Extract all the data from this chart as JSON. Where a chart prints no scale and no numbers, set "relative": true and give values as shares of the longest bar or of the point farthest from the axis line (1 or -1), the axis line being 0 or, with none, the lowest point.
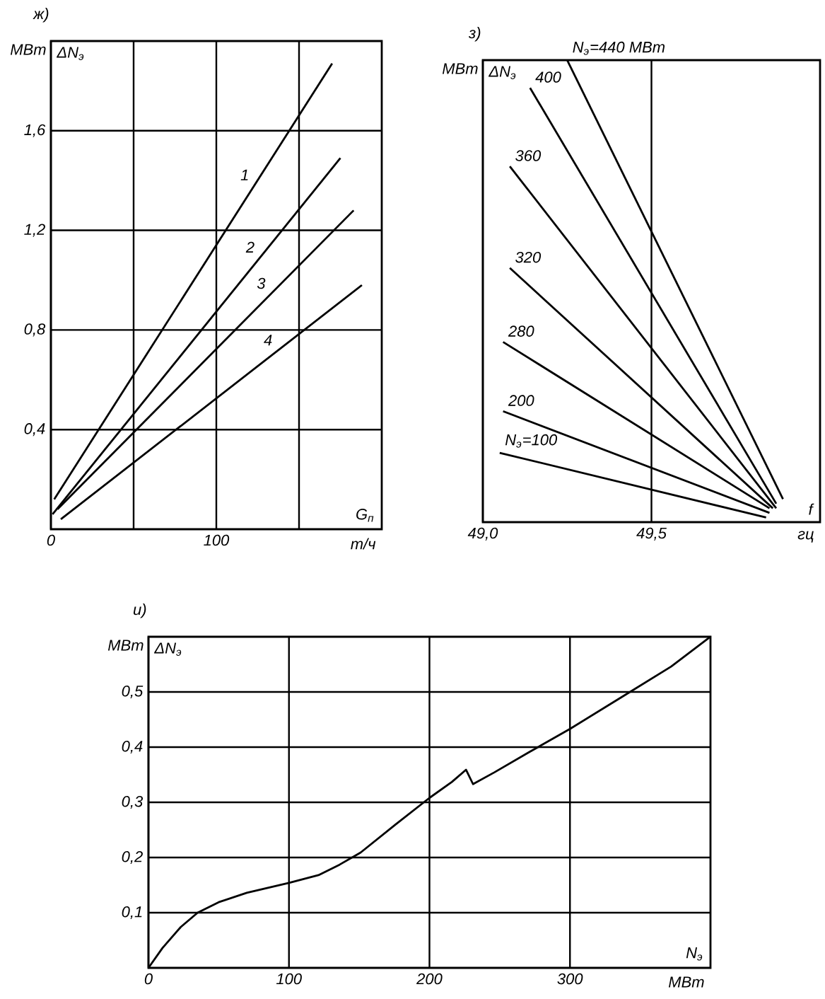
{
  "chart_data": [
    {
      "type": "line",
      "title": "ж)",
      "xlabel": "G$_{п}$",
      "ylabel": "ΔN$_{э}$",
      "annotations": [
        "МВт",
        "т/ч"
      ],
      "xlim": [
        0,
        200
      ],
      "ylim": [
        0,
        1.96
      ],
      "xticks": [
        0,
        {
          "value": 50,
          "label": null
        },
        100,
        {
          "value": 150,
          "label": null
        }
      ],
      "yticks": [
        {
          "value": 0.4,
          "label": "0,4"
        },
        {
          "value": 0.8,
          "label": "0,8"
        },
        {
          "value": 1.2,
          "label": "1,2"
        },
        {
          "value": 1.6,
          "label": "1,6"
        }
      ],
      "grid": true,
      "marker": "none",
      "line_style": "solid",
      "series": [
        {
          "name": "1",
          "color": "#000000",
          "x": [
            2,
            170
          ],
          "values": [
            0.12,
            1.87
          ]
        },
        {
          "name": "2",
          "color": "#000000",
          "x": [
            1,
            175
          ],
          "values": [
            0.06,
            1.49
          ]
        },
        {
          "name": "3",
          "color": "#000000",
          "x": [
            4,
            183
          ],
          "values": [
            0.08,
            1.28
          ]
        },
        {
          "name": "4",
          "color": "#000000",
          "x": [
            6,
            188
          ],
          "values": [
            0.04,
            0.98
          ]
        }
      ]
    },
    {
      "type": "line",
      "title": "з)",
      "xlabel": "f",
      "ylabel": "ΔN$_{э}$",
      "annotations": [
        "МВт",
        "гц"
      ],
      "xlim": [
        49.0,
        50.0
      ],
      "xticks": [
        {
          "value": 49.0,
          "label": "49,0"
        },
        {
          "value": 49.5,
          "label": "49,5"
        }
      ],
      "relative": true,
      "grid": "x",
      "marker": "none",
      "line_style": "solid",
      "series": [
        {
          "name": "N$_{э}$=440 МВт",
          "color": "#000000",
          "x": [
            49.25,
            49.89
          ],
          "values": [
            1.0,
            0.05
          ]
        },
        {
          "name": "400",
          "color": "#000000",
          "x": [
            49.14,
            49.87
          ],
          "values": [
            0.94,
            0.04
          ]
        },
        {
          "name": "360",
          "color": "#000000",
          "x": [
            49.08,
            49.87
          ],
          "values": [
            0.77,
            0.03
          ]
        },
        {
          "name": "320",
          "color": "#000000",
          "x": [
            49.08,
            49.86
          ],
          "values": [
            0.55,
            0.03
          ]
        },
        {
          "name": "280",
          "color": "#000000",
          "x": [
            49.06,
            49.85
          ],
          "values": [
            0.39,
            0.03
          ]
        },
        {
          "name": "200",
          "color": "#000000",
          "x": [
            49.06,
            49.85
          ],
          "values": [
            0.24,
            0.02
          ]
        },
        {
          "name": "N$_{э}$=100",
          "color": "#000000",
          "x": [
            49.05,
            49.84
          ],
          "values": [
            0.15,
            0.01
          ]
        }
      ]
    },
    {
      "type": "line",
      "title": "и)",
      "xlabel": "N$_{э}$",
      "ylabel": "ΔN$_{э}$",
      "annotations": [
        "МВт",
        "МВт"
      ],
      "xlim": [
        0,
        400
      ],
      "ylim": [
        0,
        0.6
      ],
      "xticks": [
        0,
        100,
        200,
        300
      ],
      "yticks": [
        {
          "value": 0.1,
          "label": "0,1"
        },
        {
          "value": 0.2,
          "label": "0,2"
        },
        {
          "value": 0.3,
          "label": "0,3"
        },
        {
          "value": 0.4,
          "label": "0,4"
        },
        {
          "value": 0.5,
          "label": "0,5"
        }
      ],
      "grid": true,
      "marker": "none",
      "line_style": "solid",
      "series": [
        {
          "color": "#000000",
          "x": [
            0,
            10,
            23,
            35,
            50,
            70,
            100,
            121,
            136,
            151,
            176,
            200,
            216,
            226,
            231,
            246,
            271,
            300,
            337,
            372,
            400
          ],
          "values": [
            0,
            0.036,
            0.074,
            0.1,
            0.119,
            0.136,
            0.154,
            0.168,
            0.187,
            0.209,
            0.26,
            0.308,
            0.337,
            0.359,
            0.333,
            0.354,
            0.391,
            0.433,
            0.491,
            0.546,
            0.6
          ]
        }
      ]
    }
  ]
}
